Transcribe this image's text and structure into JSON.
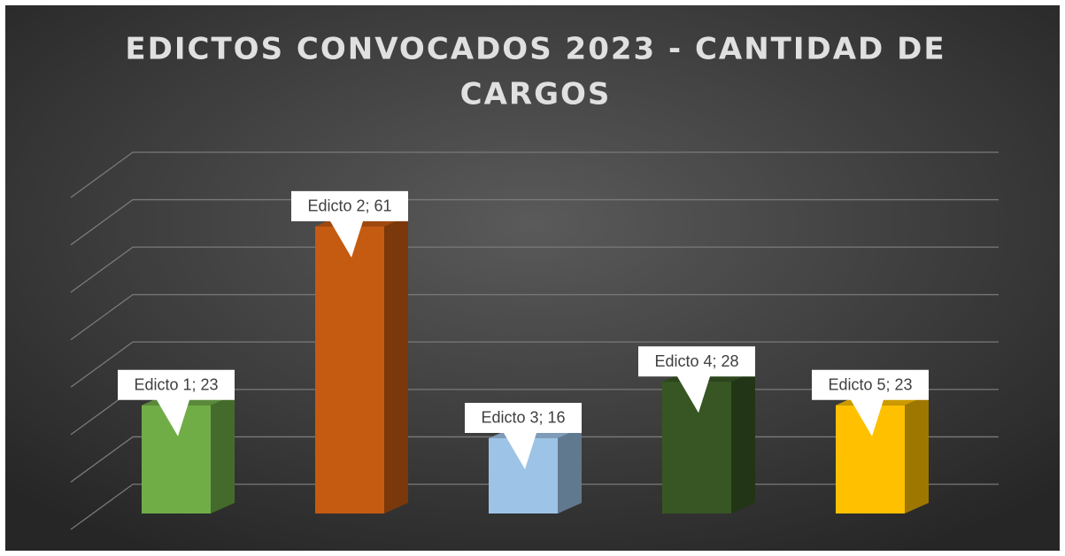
{
  "chart_data": {
    "type": "bar3d",
    "title": [
      "EDICTOS CONVOCADOS 2023 - CANTIDAD DE",
      "CARGOS"
    ],
    "values": [
      23,
      61,
      16,
      28,
      23
    ],
    "value_labels": [
      "Edicto 1; 23",
      "Edicto 2; 61",
      "Edicto 3; 16",
      "Edicto 4; 28",
      "Edicto 5; 23"
    ],
    "colors": [
      "#70ad47",
      "#c55a11",
      "#9dc3e6",
      "#375623",
      "#ffc000"
    ],
    "ylim": [
      0,
      70
    ],
    "yticks": [
      0,
      10,
      20,
      30,
      40,
      50,
      60,
      70
    ],
    "grid": true
  }
}
